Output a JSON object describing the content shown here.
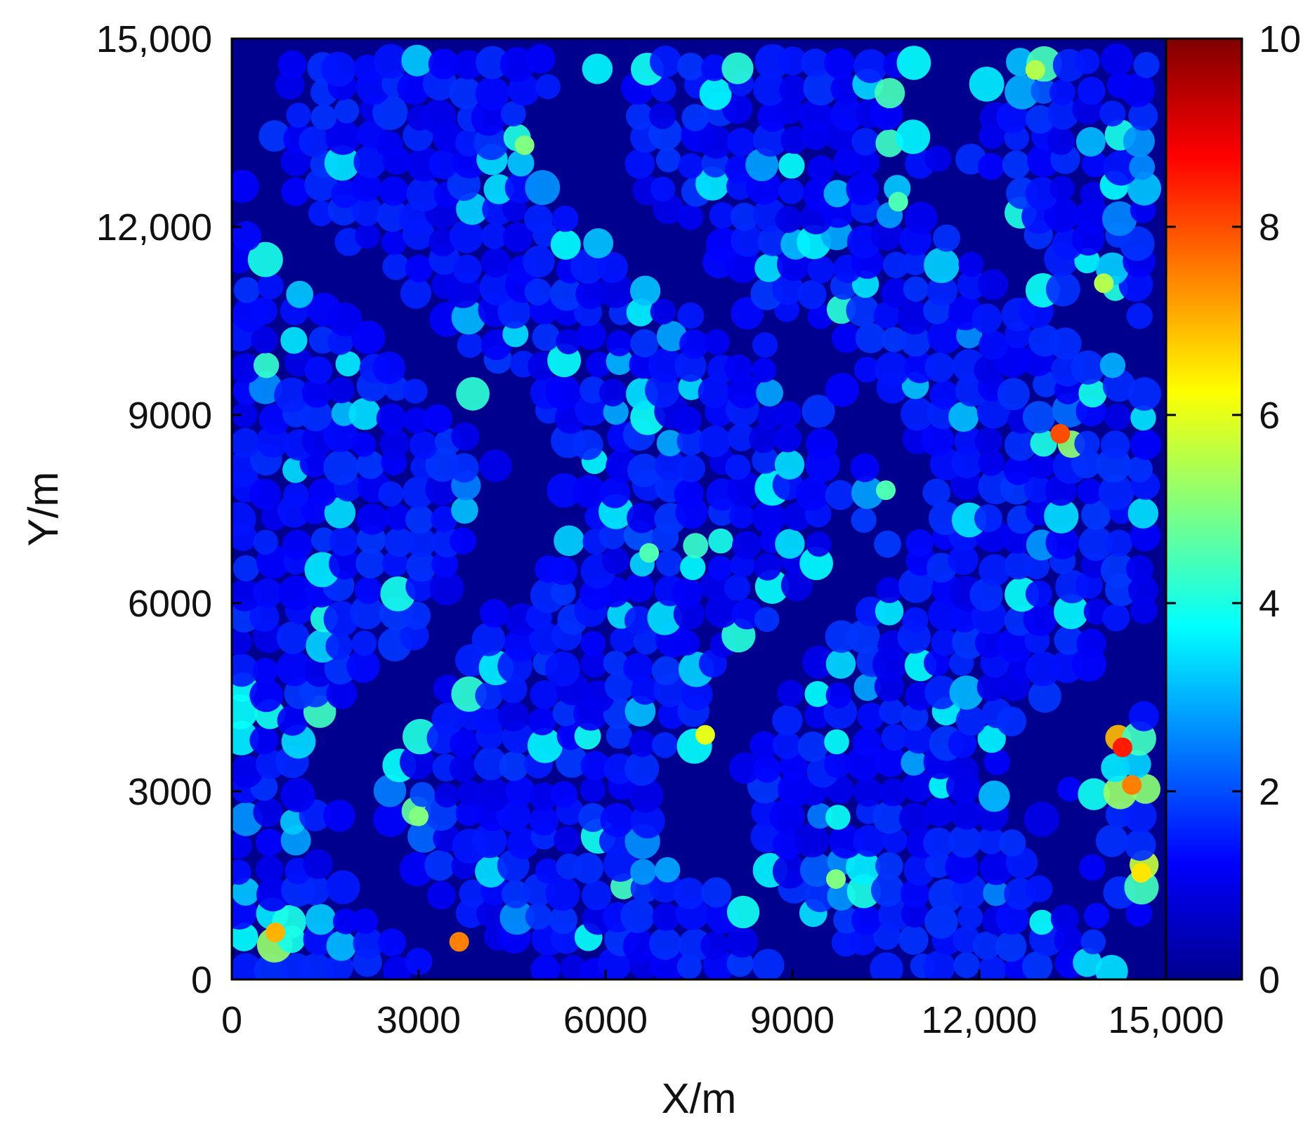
{
  "chart_data": {
    "type": "heatmap",
    "title": "",
    "xlabel": "X/m",
    "ylabel": "Y/m",
    "xlim": [
      0,
      15000
    ],
    "ylim": [
      0,
      15000
    ],
    "x_ticks": [
      0,
      3000,
      6000,
      9000,
      12000,
      15000
    ],
    "x_tick_labels": [
      "0",
      "3000",
      "6000",
      "9000",
      "12,000",
      "15,000"
    ],
    "y_ticks": [
      0,
      3000,
      6000,
      9000,
      12000,
      15000
    ],
    "y_tick_labels": [
      "0",
      "3000",
      "6000",
      "9000",
      "12,000",
      "15,000"
    ],
    "colorbar": {
      "range": [
        0,
        10
      ],
      "ticks": [
        0,
        2,
        4,
        6,
        8,
        10
      ],
      "tick_labels": [
        "0",
        "2",
        "4",
        "6",
        "8",
        "10"
      ],
      "colormap": "jet",
      "colors": [
        "#00008f",
        "#0000ff",
        "#0080ff",
        "#00ffff",
        "#80ff80",
        "#ffff00",
        "#ff8000",
        "#ff0000",
        "#800000"
      ]
    },
    "grid": false,
    "background_value": 0,
    "typical_value": 1.5,
    "hotspots": [
      {
        "x": 14300,
        "y": 3700,
        "value": 8.5
      },
      {
        "x": 14450,
        "y": 3100,
        "value": 7.5
      },
      {
        "x": 13300,
        "y": 8700,
        "value": 8.0
      },
      {
        "x": 3650,
        "y": 600,
        "value": 7.5
      },
      {
        "x": 700,
        "y": 750,
        "value": 7.0
      },
      {
        "x": 14600,
        "y": 1700,
        "value": 6.5
      },
      {
        "x": 7600,
        "y": 3900,
        "value": 6.0
      },
      {
        "x": 12900,
        "y": 14500,
        "value": 5.5
      },
      {
        "x": 4700,
        "y": 13300,
        "value": 5.0
      },
      {
        "x": 14000,
        "y": 11100,
        "value": 5.5
      },
      {
        "x": 9700,
        "y": 1600,
        "value": 5.0
      },
      {
        "x": 3000,
        "y": 2600,
        "value": 5.0
      },
      {
        "x": 10700,
        "y": 12400,
        "value": 4.5
      },
      {
        "x": 6700,
        "y": 6800,
        "value": 4.5
      },
      {
        "x": 10500,
        "y": 7800,
        "value": 4.5
      }
    ]
  }
}
